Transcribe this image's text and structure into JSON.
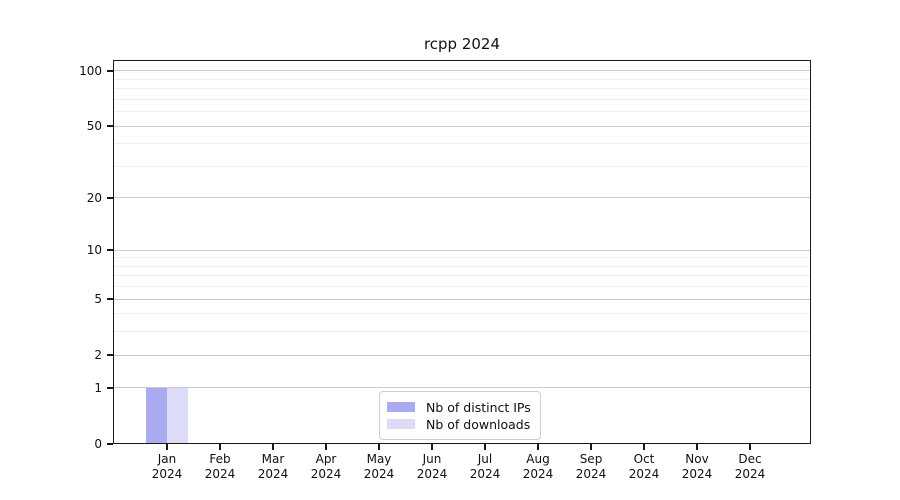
{
  "title": "rcpp 2024",
  "chart_data": {
    "type": "bar",
    "title": "rcpp 2024",
    "categories": [
      "Jan",
      "Feb",
      "Mar",
      "Apr",
      "May",
      "Jun",
      "Jul",
      "Aug",
      "Sep",
      "Oct",
      "Nov",
      "Dec"
    ],
    "category_year": "2024",
    "series": [
      {
        "name": "Nb of distinct IPs",
        "color": "#aaaaf0",
        "values": [
          1,
          0,
          0,
          0,
          0,
          0,
          0,
          0,
          0,
          0,
          0,
          0
        ]
      },
      {
        "name": "Nb of downloads",
        "color": "#dcdcf8",
        "values": [
          1,
          0,
          0,
          0,
          0,
          0,
          0,
          0,
          0,
          0,
          0,
          0
        ]
      }
    ],
    "xlabel": "",
    "ylabel": "",
    "y_scale": "log1p",
    "y_ticks": [
      0,
      1,
      2,
      5,
      10,
      20,
      50,
      100
    ],
    "y_minor_ticks": [
      3,
      4,
      6,
      7,
      8,
      9,
      30,
      40,
      60,
      70,
      80,
      90
    ],
    "ylim": [
      0,
      115
    ],
    "grid": true,
    "legend_position": "lower center"
  }
}
